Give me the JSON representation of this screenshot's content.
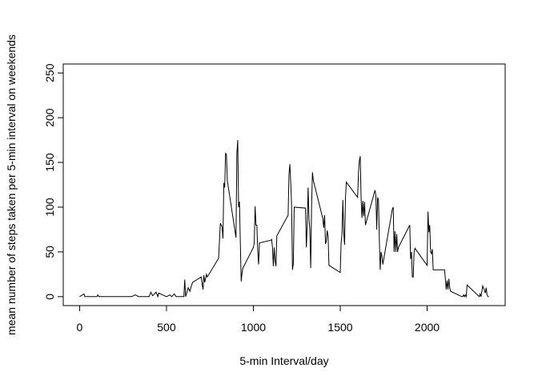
{
  "chart_data": {
    "type": "line",
    "x_label": "5-min Interval/day",
    "y_label": "mean number of steps taken per 5-min interval on weekends",
    "color": "#000000",
    "xlim": [
      -94.2,
      2449.2
    ],
    "xticks": [
      0,
      500,
      1000,
      1500,
      2000
    ],
    "ylim": [
      -10,
      260
    ],
    "yticks": [
      0,
      50,
      100,
      150,
      200,
      250
    ],
    "x": [
      0,
      25,
      30,
      100,
      105,
      110,
      300,
      320,
      340,
      400,
      410,
      420,
      440,
      450,
      455,
      500,
      520,
      530,
      545,
      555,
      600,
      605,
      610,
      625,
      635,
      640,
      650,
      700,
      710,
      715,
      720,
      730,
      735,
      800,
      810,
      820,
      825,
      830,
      835,
      840,
      845,
      850,
      900,
      905,
      910,
      915,
      920,
      925,
      930,
      935,
      940,
      1000,
      1005,
      1010,
      1015,
      1020,
      1025,
      1030,
      1035,
      1100,
      1105,
      1110,
      1115,
      1120,
      1125,
      1130,
      1135,
      1200,
      1205,
      1210,
      1215,
      1220,
      1225,
      1230,
      1235,
      1300,
      1305,
      1310,
      1315,
      1320,
      1325,
      1330,
      1335,
      1340,
      1345,
      1400,
      1405,
      1410,
      1415,
      1420,
      1425,
      1430,
      1435,
      1500,
      1505,
      1510,
      1515,
      1520,
      1525,
      1530,
      1535,
      1600,
      1605,
      1610,
      1615,
      1620,
      1625,
      1630,
      1635,
      1640,
      1645,
      1700,
      1705,
      1710,
      1715,
      1720,
      1725,
      1730,
      1735,
      1740,
      1745,
      1800,
      1805,
      1810,
      1815,
      1820,
      1825,
      1830,
      1835,
      1900,
      1905,
      1910,
      1915,
      1920,
      1925,
      1930,
      2000,
      2005,
      2010,
      2015,
      2020,
      2025,
      2030,
      2035,
      2100,
      2105,
      2110,
      2115,
      2120,
      2125,
      2130,
      2135,
      2200,
      2205,
      2210,
      2215,
      2220,
      2225,
      2230,
      2300,
      2305,
      2310,
      2320,
      2330,
      2335,
      2340,
      2345,
      2350,
      2355
    ],
    "values": [
      0,
      3,
      0,
      0,
      2,
      0,
      0,
      2,
      0,
      0,
      5,
      1,
      5,
      0,
      4,
      0,
      2,
      0,
      3,
      0,
      0,
      19,
      0,
      10,
      6,
      10,
      16,
      22,
      8,
      24,
      16,
      25,
      22,
      43,
      82,
      78,
      65,
      127,
      122,
      160,
      159,
      130,
      66,
      160,
      175,
      100,
      106,
      60,
      17,
      27,
      32,
      55,
      60,
      101,
      80,
      80,
      52,
      36,
      60,
      63,
      64,
      55,
      34,
      55,
      40,
      34,
      68,
      91,
      137,
      148,
      128,
      102,
      30,
      37,
      100,
      99,
      55,
      80,
      122,
      87,
      75,
      32,
      100,
      139,
      130,
      87,
      77,
      91,
      59,
      62,
      74,
      68,
      35,
      27,
      60,
      70,
      108,
      72,
      58,
      110,
      128,
      111,
      139,
      152,
      157,
      110,
      88,
      107,
      90,
      106,
      80,
      119,
      113,
      75,
      111,
      108,
      64,
      30,
      50,
      45,
      36,
      98,
      100,
      50,
      73,
      50,
      70,
      50,
      55,
      80,
      42,
      50,
      22,
      22,
      50,
      54,
      35,
      95,
      72,
      80,
      50,
      48,
      53,
      30,
      30,
      20,
      8,
      18,
      8,
      20,
      10,
      6,
      0,
      0,
      2,
      0,
      2,
      0,
      13,
      0,
      3,
      0,
      12,
      7,
      4,
      10,
      2,
      0,
      0
    ]
  }
}
